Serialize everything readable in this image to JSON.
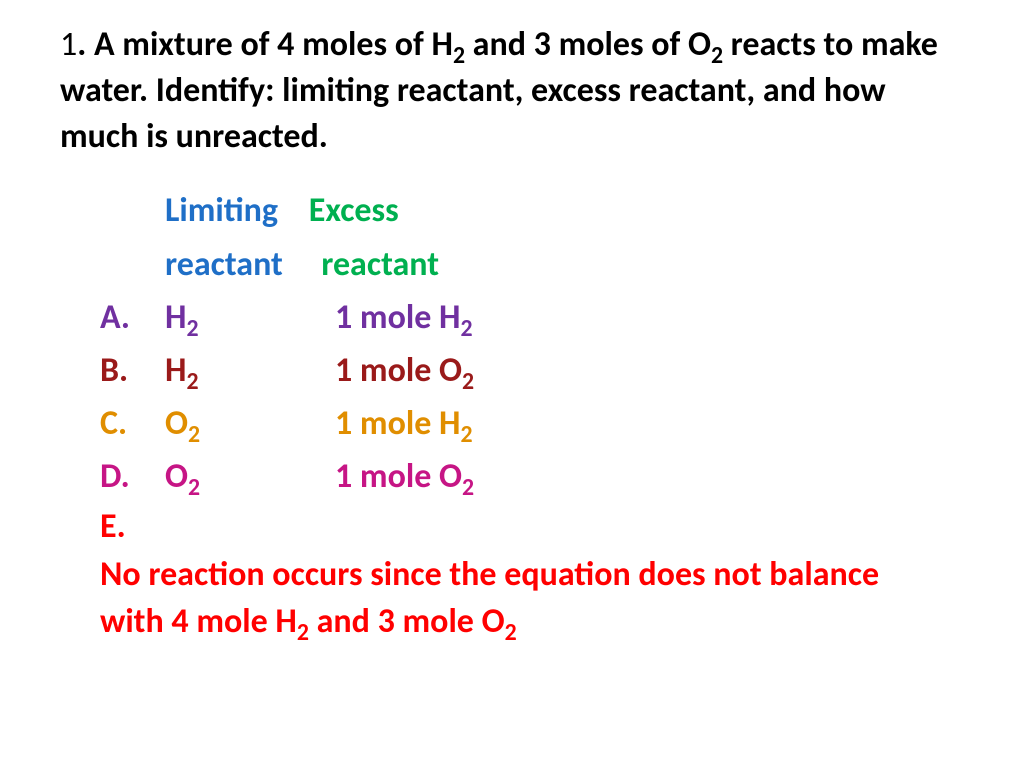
{
  "question": {
    "number": "1",
    "text_parts": {
      "p1": ". A mixture of 4 moles of H",
      "p2": " and 3 moles of O",
      "p3": " reacts to make water. Identify: limiting reactant, excess reactant, and how much is unreacted."
    }
  },
  "headers": {
    "limiting": "Limiting",
    "excess": "Excess",
    "reactant1": "reactant",
    "reactant2": "reactant"
  },
  "options": {
    "a": {
      "letter": "A.",
      "col1_pre": "H",
      "col1_sub": "2",
      "col2_pre": "1 mole H",
      "col2_sub": "2",
      "color": "#7030a0"
    },
    "b": {
      "letter": "B.",
      "col1_pre": "H",
      "col1_sub": "2",
      "col2_pre": "1 mole O",
      "col2_sub": "2",
      "color": "#9a1a1a"
    },
    "c": {
      "letter": "C.",
      "col1_pre": "O",
      "col1_sub": "2",
      "col2_pre": "1 mole H",
      "col2_sub": "2",
      "color": "#e08e00"
    },
    "d": {
      "letter": "D.",
      "col1_pre": "O",
      "col1_sub": "2",
      "col2_pre": "1 mole O",
      "col2_sub": "2",
      "color": "#c61585"
    },
    "e": {
      "letter": "E.",
      "t1": "No reaction occurs since the equation does not balance with 4 mole H",
      "s1": "2",
      "t2": " and 3 mole O",
      "s2": "2",
      "color": "#ff0000"
    }
  },
  "styling": {
    "background_color": "#ffffff",
    "question_color": "#000000",
    "limiting_color": "#1f6fc7",
    "excess_color": "#00b050",
    "font_family": "Calibri",
    "question_fontsize": 34,
    "option_fontsize": 34,
    "font_weight": "bold"
  }
}
